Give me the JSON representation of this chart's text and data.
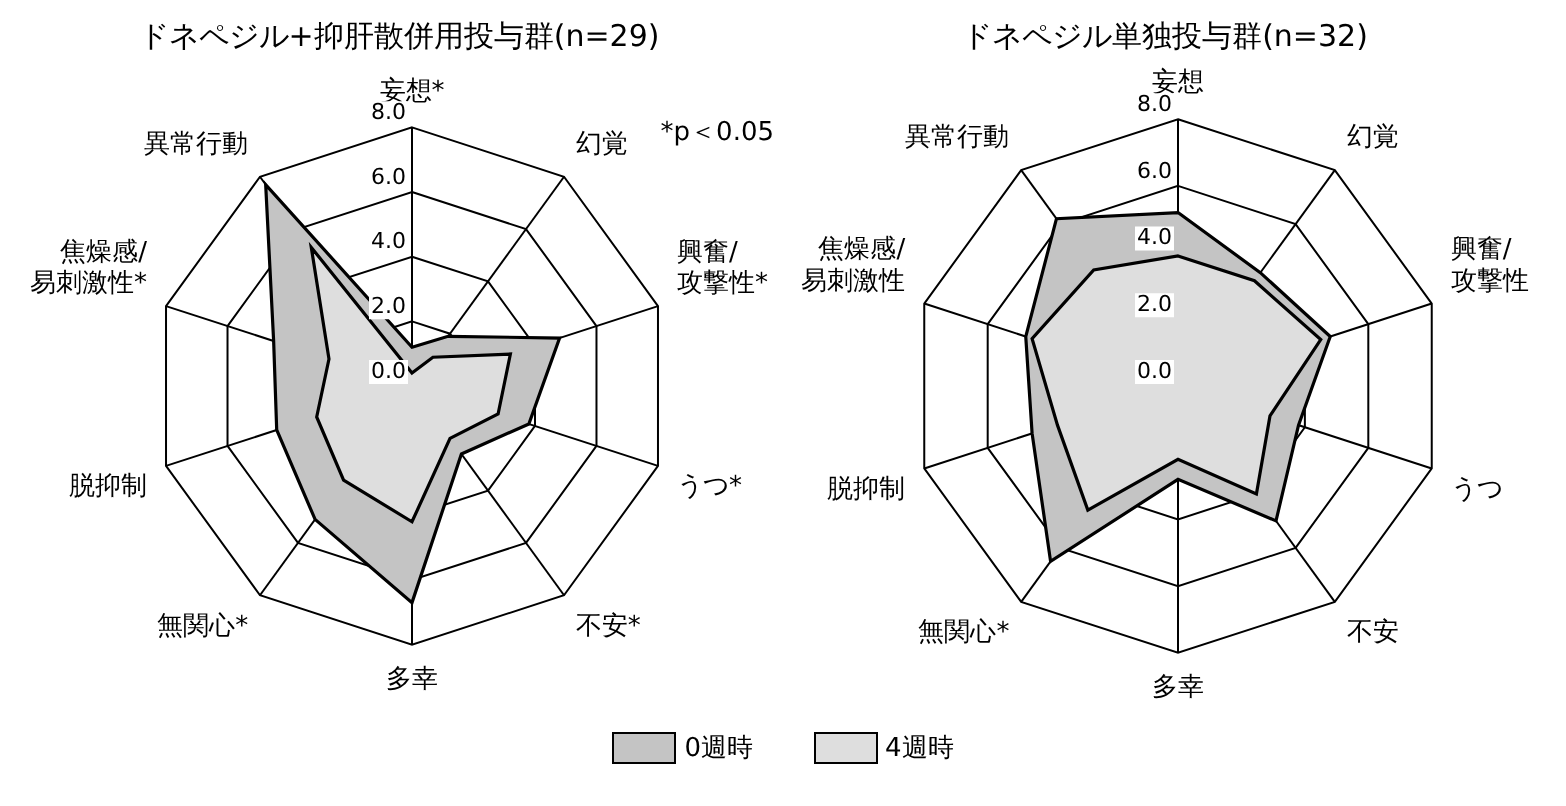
{
  "chart_data": [
    {
      "type": "radar",
      "title": "ドネペジル+抑肝散併用投与群(n=29)",
      "categories": [
        "妄想*",
        "幻覚",
        "興奮/攻撃性*",
        "うつ*",
        "不安*",
        "多幸",
        "無関心*",
        "脱抑制",
        "焦燥感/易刺激性*",
        "異常行動"
      ],
      "series": [
        {
          "name": "0週時",
          "color": "#c4c4c4",
          "values": [
            1.2,
            1.9,
            4.8,
            3.8,
            2.6,
            6.7,
            5.1,
            4.4,
            4.5,
            7.7
          ]
        },
        {
          "name": "4週時",
          "color": "#dedede",
          "values": [
            0.4,
            1.1,
            3.2,
            2.8,
            2.0,
            4.2,
            3.6,
            3.1,
            2.7,
            5.3
          ]
        }
      ],
      "ylim": [
        0,
        8
      ],
      "yticks": [
        {
          "value": 0,
          "label": "0.0"
        },
        {
          "value": 2,
          "label": "2.0"
        },
        {
          "value": 4,
          "label": "4.0"
        },
        {
          "value": 6,
          "label": "6.0"
        },
        {
          "value": 8,
          "label": "8.0"
        }
      ],
      "grid": true,
      "legend": "bottom",
      "marker": "none",
      "annotations": [
        "*p＜0.05"
      ]
    },
    {
      "type": "radar",
      "title": "ドネペジル単独投与群(n=32)",
      "categories": [
        "妄想",
        "幻覚",
        "興奮/攻撃性",
        "うつ",
        "不安",
        "多幸",
        "無関心*",
        "脱抑制",
        "焦燥感/易刺激性",
        "異常行動"
      ],
      "series": [
        {
          "color": "#c4c4c4",
          "values": [
            5.2,
            4.2,
            4.8,
            3.8,
            5.0,
            2.8,
            6.5,
            4.6,
            4.8,
            6.2
          ]
        },
        {
          "color": "#dedede",
          "values": [
            3.9,
            3.9,
            4.5,
            2.9,
            4.0,
            2.2,
            4.6,
            3.8,
            4.6,
            4.3
          ]
        }
      ],
      "ylim": [
        0,
        8
      ],
      "yticks": [
        {
          "value": 0,
          "label": "0.0"
        },
        {
          "value": 2,
          "label": "2.0"
        },
        {
          "value": 4,
          "label": "4.0"
        },
        {
          "value": 6,
          "label": "6.0"
        },
        {
          "value": 8,
          "label": "8.0"
        }
      ],
      "grid": true,
      "marker": "none"
    }
  ]
}
